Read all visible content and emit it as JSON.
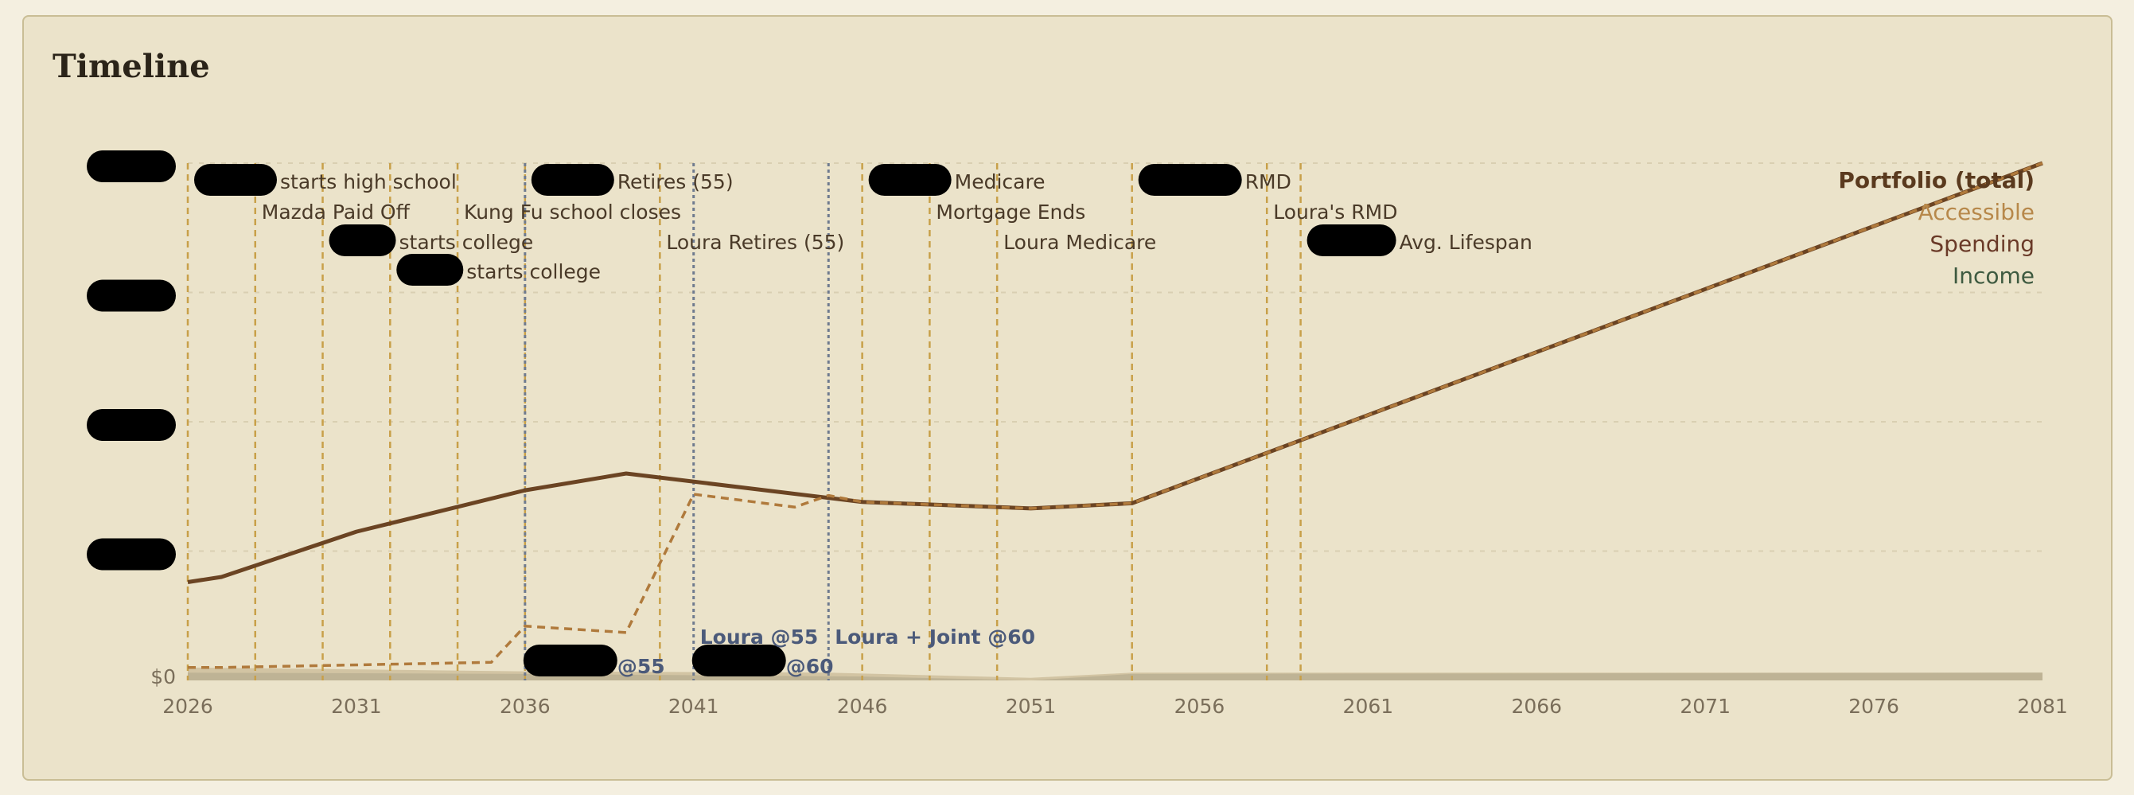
{
  "card": {
    "title": "Timeline"
  },
  "chart_data": {
    "type": "line",
    "title": "Timeline",
    "xlim": [
      2026,
      2081
    ],
    "x_ticks": [
      "2026",
      "2031",
      "2036",
      "2041",
      "2046",
      "2051",
      "2056",
      "2061",
      "2066",
      "2071",
      "2076",
      "2081"
    ],
    "y_label_visible": "$0",
    "ylim": [
      0,
      4
    ],
    "grid": true,
    "legend_position": "top-right",
    "legend": [
      {
        "label": "Portfolio (total)",
        "color": "#5a3a1e",
        "bold": true
      },
      {
        "label": "Accessible",
        "color": "#b7884a",
        "bold": false
      },
      {
        "label": "Spending",
        "color": "#6a3a28",
        "bold": false
      },
      {
        "label": "Income",
        "color": "#3e5a40",
        "bold": false
      }
    ],
    "series": [
      {
        "name": "Portfolio (total)",
        "color": "#6b4423",
        "style": "solid",
        "points": [
          [
            2026,
            0.76
          ],
          [
            2027,
            0.8
          ],
          [
            2031,
            1.15
          ],
          [
            2036,
            1.47
          ],
          [
            2039,
            1.6
          ],
          [
            2046,
            1.38
          ],
          [
            2051,
            1.33
          ],
          [
            2054,
            1.37
          ],
          [
            2081,
            4.0
          ]
        ]
      },
      {
        "name": "Accessible",
        "color": "#b07a3c",
        "style": "dashed",
        "points": [
          [
            2026,
            0.1
          ],
          [
            2027,
            0.1
          ],
          [
            2035,
            0.14
          ],
          [
            2036,
            0.42
          ],
          [
            2039,
            0.37
          ],
          [
            2041,
            1.44
          ],
          [
            2044,
            1.34
          ],
          [
            2045,
            1.43
          ],
          [
            2046,
            1.38
          ],
          [
            2051,
            1.33
          ],
          [
            2054,
            1.37
          ],
          [
            2081,
            4.0
          ]
        ]
      },
      {
        "name": "Spending",
        "color": "#c9b995",
        "style": "area",
        "points": [
          [
            2026,
            0.1
          ],
          [
            2036,
            0.07
          ],
          [
            2045,
            0.06
          ],
          [
            2051,
            0.02
          ],
          [
            2054,
            0.06
          ],
          [
            2081,
            0.06
          ]
        ]
      },
      {
        "name": "Income",
        "color": "#b7ad90",
        "style": "area",
        "points": [
          [
            2026,
            0.06
          ],
          [
            2036,
            0.05
          ],
          [
            2046,
            0.03
          ],
          [
            2051,
            0.0
          ],
          [
            2054,
            0.05
          ],
          [
            2081,
            0.06
          ]
        ]
      }
    ],
    "events": [
      {
        "year": 2026,
        "row": 0,
        "label": "starts high school",
        "redacted": true
      },
      {
        "year": 2028,
        "row": 1,
        "label": "Mazda Paid Off",
        "redacted": false
      },
      {
        "year": 2030,
        "row": 2,
        "label": "starts college",
        "redacted": true
      },
      {
        "year": 2032,
        "row": 3,
        "label": "starts college",
        "redacted": true
      },
      {
        "year": 2034,
        "row": 1,
        "label": "Kung Fu school closes",
        "redacted": false
      },
      {
        "year": 2036,
        "row": 0,
        "label": "Retires (55)",
        "redacted": true
      },
      {
        "year": 2040,
        "row": 2,
        "label": "Loura Retires (55)",
        "redacted": false
      },
      {
        "year": 2046,
        "row": 0,
        "label": "Medicare",
        "redacted": true
      },
      {
        "year": 2048,
        "row": 1,
        "label": "Mortgage Ends",
        "redacted": false
      },
      {
        "year": 2050,
        "row": 2,
        "label": "Loura Medicare",
        "redacted": false
      },
      {
        "year": 2054,
        "row": 0,
        "label": "RMD",
        "redacted": true
      },
      {
        "year": 2058,
        "row": 1,
        "label": "Loura's RMD",
        "redacted": false
      },
      {
        "year": 2059,
        "row": 2,
        "label": "Avg. Lifespan",
        "redacted": true
      }
    ],
    "markers": [
      {
        "year": 2036,
        "label": "@55",
        "redacted": true,
        "label_row": "low"
      },
      {
        "year": 2041,
        "label": "@60",
        "redacted": true,
        "label_row": "low"
      },
      {
        "year": 2041,
        "label": "Loura @55",
        "redacted": false,
        "label_row": "high"
      },
      {
        "year": 2045,
        "label": "Loura + Joint @60",
        "redacted": false,
        "label_row": "high"
      }
    ],
    "colors": {
      "event_line": "#c8a049",
      "marker_line": "#6f7b8f",
      "grid": "#d9cfb2",
      "redaction": "#000000"
    }
  }
}
